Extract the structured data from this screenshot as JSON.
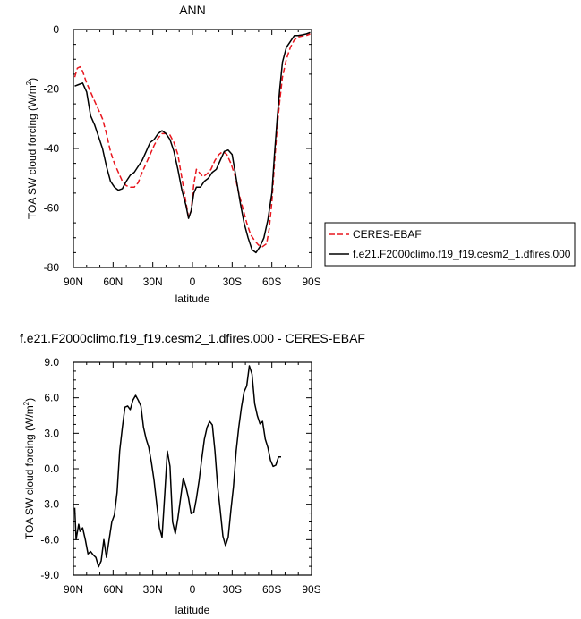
{
  "chart_data": [
    {
      "type": "line",
      "title": "ANN",
      "xlabel": "latitude",
      "ylabel_main": "TOA SW cloud forcing (W/m",
      "ylabel_sup": "2",
      "ylabel_tail": ")",
      "xlim": [
        90,
        -90
      ],
      "ylim": [
        -80,
        0
      ],
      "xticks": [
        {
          "value": 90,
          "label": "90N"
        },
        {
          "value": 60,
          "label": "60N"
        },
        {
          "value": 30,
          "label": "30N"
        },
        {
          "value": 0,
          "label": "0"
        },
        {
          "value": -30,
          "label": "30S"
        },
        {
          "value": -60,
          "label": "60S"
        },
        {
          "value": -90,
          "label": "90S"
        }
      ],
      "yticks": [
        {
          "value": 0,
          "label": "0"
        },
        {
          "value": -20,
          "label": "-20"
        },
        {
          "value": -40,
          "label": "-40"
        },
        {
          "value": -60,
          "label": "-60"
        },
        {
          "value": -80,
          "label": "-80"
        }
      ],
      "legend_position": "right",
      "series": [
        {
          "name": "CERES-EBAF",
          "color": "#e8161e",
          "dash": true,
          "points": [
            [
              89,
              -16
            ],
            [
              87,
              -13
            ],
            [
              85,
              -12.5
            ],
            [
              83,
              -14
            ],
            [
              80,
              -18
            ],
            [
              77,
              -21
            ],
            [
              74,
              -24
            ],
            [
              71,
              -27
            ],
            [
              68,
              -30
            ],
            [
              65,
              -35
            ],
            [
              62,
              -41
            ],
            [
              59,
              -45
            ],
            [
              56,
              -48
            ],
            [
              53,
              -51
            ],
            [
              50,
              -52.5
            ],
            [
              47,
              -53
            ],
            [
              44,
              -53
            ],
            [
              41,
              -51.5
            ],
            [
              38,
              -48
            ],
            [
              35,
              -45
            ],
            [
              32,
              -42
            ],
            [
              29,
              -39
            ],
            [
              26,
              -36.5
            ],
            [
              23,
              -35
            ],
            [
              20,
              -35
            ],
            [
              17,
              -35.5
            ],
            [
              14,
              -38
            ],
            [
              11,
              -42
            ],
            [
              8,
              -50
            ],
            [
              5,
              -58
            ],
            [
              3,
              -63
            ],
            [
              1,
              -61
            ],
            [
              -1,
              -52
            ],
            [
              -3,
              -47
            ],
            [
              -5,
              -48
            ],
            [
              -8,
              -49.5
            ],
            [
              -11,
              -48.5
            ],
            [
              -14,
              -47
            ],
            [
              -17,
              -44
            ],
            [
              -20,
              -42
            ],
            [
              -23,
              -41
            ],
            [
              -26,
              -42
            ],
            [
              -29,
              -45
            ],
            [
              -32,
              -49
            ],
            [
              -35,
              -55
            ],
            [
              -38,
              -60
            ],
            [
              -41,
              -65
            ],
            [
              -44,
              -69
            ],
            [
              -47,
              -71
            ],
            [
              -50,
              -72.5
            ],
            [
              -53,
              -73
            ],
            [
              -56,
              -72
            ],
            [
              -58,
              -67
            ],
            [
              -60,
              -58
            ],
            [
              -62,
              -45
            ],
            [
              -64,
              -33
            ],
            [
              -66,
              -24
            ],
            [
              -68,
              -16
            ],
            [
              -71,
              -10
            ],
            [
              -74,
              -6
            ],
            [
              -77,
              -3.5
            ],
            [
              -80,
              -2.5
            ],
            [
              -83,
              -2.2
            ],
            [
              -86,
              -2
            ],
            [
              -89,
              -1.5
            ]
          ]
        },
        {
          "name": "f.e21.F2000climo.f19_f19.cesm2_1.dfires.000",
          "color": "#000000",
          "dash": false,
          "points": [
            [
              89,
              -19
            ],
            [
              86,
              -18.5
            ],
            [
              83,
              -18
            ],
            [
              80,
              -21
            ],
            [
              77,
              -29
            ],
            [
              74,
              -32
            ],
            [
              71,
              -36
            ],
            [
              68,
              -40
            ],
            [
              65,
              -46
            ],
            [
              62,
              -51
            ],
            [
              59,
              -53
            ],
            [
              56,
              -54
            ],
            [
              53,
              -53.5
            ],
            [
              50,
              -51
            ],
            [
              47,
              -49
            ],
            [
              44,
              -48
            ],
            [
              41,
              -46
            ],
            [
              38,
              -44
            ],
            [
              35,
              -41
            ],
            [
              32,
              -38
            ],
            [
              29,
              -37
            ],
            [
              26,
              -35
            ],
            [
              23,
              -34
            ],
            [
              20,
              -35
            ],
            [
              17,
              -37
            ],
            [
              14,
              -41
            ],
            [
              11,
              -47
            ],
            [
              8,
              -54
            ],
            [
              5,
              -59
            ],
            [
              3,
              -63.5
            ],
            [
              1,
              -61
            ],
            [
              -1,
              -55
            ],
            [
              -3,
              -53
            ],
            [
              -6,
              -53
            ],
            [
              -9,
              -51
            ],
            [
              -12,
              -50
            ],
            [
              -15,
              -48
            ],
            [
              -18,
              -47
            ],
            [
              -21,
              -44
            ],
            [
              -24,
              -41
            ],
            [
              -27,
              -40.5
            ],
            [
              -30,
              -42
            ],
            [
              -33,
              -50
            ],
            [
              -36,
              -58
            ],
            [
              -39,
              -65
            ],
            [
              -42,
              -70
            ],
            [
              -45,
              -74
            ],
            [
              -48,
              -75
            ],
            [
              -51,
              -73
            ],
            [
              -54,
              -70
            ],
            [
              -57,
              -64
            ],
            [
              -60,
              -55
            ],
            [
              -62,
              -42
            ],
            [
              -64,
              -30
            ],
            [
              -66,
              -20
            ],
            [
              -68,
              -11
            ],
            [
              -71,
              -6
            ],
            [
              -74,
              -4
            ],
            [
              -77,
              -2
            ],
            [
              -80,
              -2
            ],
            [
              -83,
              -1.8
            ],
            [
              -86,
              -1.5
            ],
            [
              -89,
              -1
            ]
          ]
        }
      ]
    },
    {
      "type": "line",
      "title": "f.e21.F2000climo.f19_f19.cesm2_1.dfires.000 - CERES-EBAF",
      "xlabel": "latitude",
      "ylabel_main": "TOA SW cloud forcing (W/m",
      "ylabel_sup": "2",
      "ylabel_tail": ")",
      "xlim": [
        90,
        -90
      ],
      "ylim": [
        -9,
        9
      ],
      "xticks": [
        {
          "value": 90,
          "label": "90N"
        },
        {
          "value": 60,
          "label": "60N"
        },
        {
          "value": 30,
          "label": "30N"
        },
        {
          "value": 0,
          "label": "0"
        },
        {
          "value": -30,
          "label": "30S"
        },
        {
          "value": -60,
          "label": "60S"
        },
        {
          "value": -90,
          "label": "90S"
        }
      ],
      "yticks": [
        {
          "value": 9,
          "label": "9.0"
        },
        {
          "value": 6,
          "label": "6.0"
        },
        {
          "value": 3,
          "label": "3.0"
        },
        {
          "value": 0,
          "label": "0.0"
        },
        {
          "value": -3,
          "label": "-3.0"
        },
        {
          "value": -6,
          "label": "-6.0"
        },
        {
          "value": -9,
          "label": "-9.0"
        }
      ],
      "series": [
        {
          "name": "",
          "color": "#000000",
          "dash": false,
          "points": [
            [
              89,
              -3.3
            ],
            [
              88,
              -6
            ],
            [
              86,
              -4.7
            ],
            [
              85,
              -5.3
            ],
            [
              83,
              -5
            ],
            [
              81,
              -6
            ],
            [
              79,
              -7.2
            ],
            [
              77,
              -7
            ],
            [
              75,
              -7.3
            ],
            [
              73,
              -7.5
            ],
            [
              71,
              -8.3
            ],
            [
              69,
              -7.8
            ],
            [
              67,
              -6
            ],
            [
              65,
              -7.5
            ],
            [
              63,
              -6
            ],
            [
              61,
              -4.5
            ],
            [
              59,
              -3.9
            ],
            [
              57,
              -2
            ],
            [
              55,
              1.5
            ],
            [
              53,
              3.5
            ],
            [
              51,
              5.2
            ],
            [
              49,
              5.3
            ],
            [
              47,
              5
            ],
            [
              45,
              5.8
            ],
            [
              43,
              6.2
            ],
            [
              41,
              5.8
            ],
            [
              39,
              5.3
            ],
            [
              37,
              3.5
            ],
            [
              35,
              2.5
            ],
            [
              33,
              1.8
            ],
            [
              31,
              0.5
            ],
            [
              29,
              -1
            ],
            [
              27,
              -3
            ],
            [
              25,
              -5
            ],
            [
              23,
              -5.8
            ],
            [
              21,
              -2.2
            ],
            [
              19,
              1.5
            ],
            [
              17,
              0.2
            ],
            [
              15,
              -4.5
            ],
            [
              13,
              -5.5
            ],
            [
              11,
              -4.2
            ],
            [
              9,
              -2.5
            ],
            [
              7,
              -0.8
            ],
            [
              5,
              -1.5
            ],
            [
              3,
              -2.5
            ],
            [
              1,
              -3.8
            ],
            [
              -1,
              -3.7
            ],
            [
              -3,
              -2.5
            ],
            [
              -5,
              -1
            ],
            [
              -7,
              0.8
            ],
            [
              -9,
              2.5
            ],
            [
              -11,
              3.5
            ],
            [
              -13,
              4
            ],
            [
              -15,
              3.7
            ],
            [
              -17,
              1.5
            ],
            [
              -19,
              -1.5
            ],
            [
              -21,
              -3.5
            ],
            [
              -23,
              -5.7
            ],
            [
              -25,
              -6.5
            ],
            [
              -27,
              -5.8
            ],
            [
              -29,
              -3.5
            ],
            [
              -31,
              -1.5
            ],
            [
              -33,
              1.5
            ],
            [
              -35,
              3.5
            ],
            [
              -37,
              5.2
            ],
            [
              -39,
              6.5
            ],
            [
              -41,
              7
            ],
            [
              -43,
              8.7
            ],
            [
              -45,
              8
            ],
            [
              -47,
              5.5
            ],
            [
              -49,
              4.5
            ],
            [
              -51,
              3.8
            ],
            [
              -53,
              4
            ],
            [
              -55,
              2.5
            ],
            [
              -57,
              1.8
            ],
            [
              -59,
              0.7
            ],
            [
              -61,
              0.2
            ],
            [
              -63,
              0.3
            ],
            [
              -65,
              1
            ],
            [
              -67,
              1
            ]
          ]
        }
      ]
    }
  ]
}
